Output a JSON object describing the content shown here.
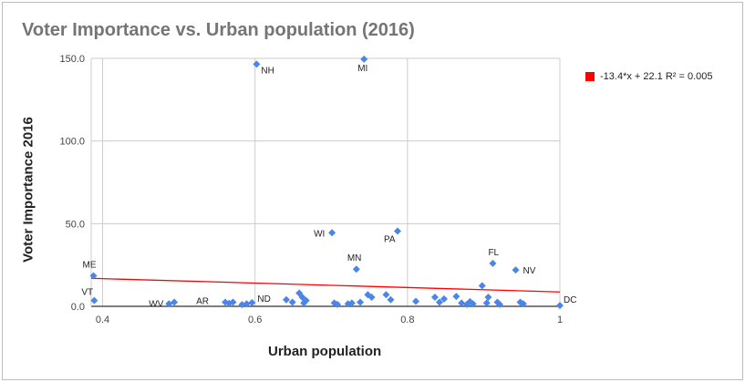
{
  "chart_data": {
    "type": "scatter",
    "title": "Voter Importance vs. Urban population (2016)",
    "xlabel": "Urban population",
    "ylabel": "Voter Importance 2016",
    "xlim": [
      0.385,
      1.0
    ],
    "ylim": [
      0,
      150
    ],
    "x_ticks": [
      "0.4",
      "0.6",
      "0.8",
      "1"
    ],
    "y_ticks": [
      "0.0",
      "50.0",
      "100.0",
      "150.0"
    ],
    "x_tick_values": [
      0.4,
      0.6,
      0.8,
      1.0
    ],
    "y_tick_values": [
      0,
      50,
      100,
      150
    ],
    "grid": true,
    "legend_position": "right",
    "colors": {
      "points": "#4a86e8",
      "trendline": "#ff0000",
      "grid": "#cccccc",
      "axis": "#333333"
    },
    "trendline": {
      "label": "-13.4*x + 22.1 R² = 0.005",
      "slope": -13.4,
      "intercept": 22.1
    },
    "points": [
      {
        "x": 0.388,
        "y": 18.5,
        "label": "ME"
      },
      {
        "x": 0.389,
        "y": 3.5,
        "label": "VT"
      },
      {
        "x": 0.487,
        "y": 1.5,
        "label": "WV"
      },
      {
        "x": 0.494,
        "y": 2.5,
        "label": ""
      },
      {
        "x": 0.561,
        "y": 2.5,
        "label": "AR"
      },
      {
        "x": 0.566,
        "y": 1.8,
        "label": ""
      },
      {
        "x": 0.571,
        "y": 2.5,
        "label": ""
      },
      {
        "x": 0.583,
        "y": 1.0,
        "label": ""
      },
      {
        "x": 0.589,
        "y": 1.5,
        "label": ""
      },
      {
        "x": 0.596,
        "y": 2.2,
        "label": "ND"
      },
      {
        "x": 0.602,
        "y": 146.5,
        "label": "NH"
      },
      {
        "x": 0.641,
        "y": 4.0,
        "label": ""
      },
      {
        "x": 0.649,
        "y": 2.5,
        "label": ""
      },
      {
        "x": 0.658,
        "y": 8.0,
        "label": ""
      },
      {
        "x": 0.662,
        "y": 5.5,
        "label": ""
      },
      {
        "x": 0.664,
        "y": 2.0,
        "label": ""
      },
      {
        "x": 0.667,
        "y": 3.5,
        "label": ""
      },
      {
        "x": 0.701,
        "y": 44.5,
        "label": "WI"
      },
      {
        "x": 0.704,
        "y": 2.0,
        "label": ""
      },
      {
        "x": 0.708,
        "y": 1.2,
        "label": ""
      },
      {
        "x": 0.722,
        "y": 1.5,
        "label": ""
      },
      {
        "x": 0.727,
        "y": 2.0,
        "label": ""
      },
      {
        "x": 0.733,
        "y": 22.5,
        "label": "MN"
      },
      {
        "x": 0.738,
        "y": 2.5,
        "label": ""
      },
      {
        "x": 0.743,
        "y": 149.5,
        "label": "MI"
      },
      {
        "x": 0.748,
        "y": 7.0,
        "label": ""
      },
      {
        "x": 0.753,
        "y": 5.5,
        "label": ""
      },
      {
        "x": 0.772,
        "y": 7.0,
        "label": ""
      },
      {
        "x": 0.778,
        "y": 4.0,
        "label": ""
      },
      {
        "x": 0.787,
        "y": 45.5,
        "label": "PA"
      },
      {
        "x": 0.811,
        "y": 3.0,
        "label": ""
      },
      {
        "x": 0.836,
        "y": 5.5,
        "label": ""
      },
      {
        "x": 0.842,
        "y": 2.5,
        "label": ""
      },
      {
        "x": 0.848,
        "y": 4.5,
        "label": ""
      },
      {
        "x": 0.864,
        "y": 6.0,
        "label": ""
      },
      {
        "x": 0.871,
        "y": 2.0,
        "label": ""
      },
      {
        "x": 0.878,
        "y": 1.2,
        "label": ""
      },
      {
        "x": 0.882,
        "y": 2.8,
        "label": ""
      },
      {
        "x": 0.886,
        "y": 1.5,
        "label": ""
      },
      {
        "x": 0.898,
        "y": 12.5,
        "label": ""
      },
      {
        "x": 0.904,
        "y": 2.0,
        "label": ""
      },
      {
        "x": 0.906,
        "y": 5.5,
        "label": ""
      },
      {
        "x": 0.912,
        "y": 26.0,
        "label": "FL"
      },
      {
        "x": 0.918,
        "y": 2.5,
        "label": ""
      },
      {
        "x": 0.921,
        "y": 1.2,
        "label": ""
      },
      {
        "x": 0.942,
        "y": 22.0,
        "label": "NV"
      },
      {
        "x": 0.948,
        "y": 2.5,
        "label": ""
      },
      {
        "x": 0.952,
        "y": 1.5,
        "label": ""
      },
      {
        "x": 1.0,
        "y": 0.5,
        "label": "DC"
      }
    ]
  }
}
